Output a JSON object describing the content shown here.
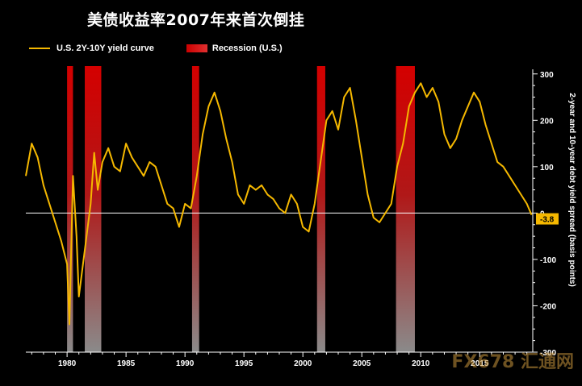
{
  "chart_data": {
    "type": "line",
    "title": "美债收益率2007年来首次倒挂",
    "ylabel": "2-year and 10-year debt yield spread (basis points)",
    "xlim": [
      1976.5,
      2019.5
    ],
    "ylim": [
      -300,
      310
    ],
    "x_ticks": [
      1980,
      1985,
      1990,
      1995,
      2000,
      2005,
      2010,
      2015
    ],
    "y_ticks": [
      -300,
      -200,
      -100,
      0,
      100,
      200,
      300
    ],
    "legend": [
      "U.S. 2Y-10Y yield curve",
      "Recession (U.S.)"
    ],
    "legend_position": "top-left",
    "annotation": "-3.8",
    "recessions": [
      [
        1980.0,
        1980.5
      ],
      [
        1981.5,
        1982.9
      ],
      [
        1990.6,
        1991.2
      ],
      [
        2001.2,
        2001.9
      ],
      [
        2007.9,
        2009.5
      ]
    ],
    "series": [
      {
        "name": "U.S. 2Y-10Y yield curve",
        "color": "#f5b800",
        "x": [
          1976.5,
          1977.0,
          1977.5,
          1978.0,
          1978.5,
          1979.0,
          1979.5,
          1980.0,
          1980.2,
          1980.5,
          1980.8,
          1981.0,
          1981.3,
          1981.6,
          1982.0,
          1982.3,
          1982.6,
          1983.0,
          1983.5,
          1984.0,
          1984.5,
          1985.0,
          1985.5,
          1986.0,
          1986.5,
          1987.0,
          1987.5,
          1988.0,
          1988.5,
          1989.0,
          1989.5,
          1990.0,
          1990.5,
          1991.0,
          1991.5,
          1992.0,
          1992.5,
          1993.0,
          1993.5,
          1994.0,
          1994.5,
          1995.0,
          1995.5,
          1996.0,
          1996.5,
          1997.0,
          1997.5,
          1998.0,
          1998.5,
          1999.0,
          1999.5,
          2000.0,
          2000.5,
          2001.0,
          2001.5,
          2002.0,
          2002.5,
          2003.0,
          2003.5,
          2004.0,
          2004.5,
          2005.0,
          2005.5,
          2006.0,
          2006.5,
          2007.0,
          2007.5,
          2008.0,
          2008.5,
          2009.0,
          2009.5,
          2010.0,
          2010.5,
          2011.0,
          2011.5,
          2012.0,
          2012.5,
          2013.0,
          2013.5,
          2014.0,
          2014.5,
          2015.0,
          2015.5,
          2016.0,
          2016.5,
          2017.0,
          2017.5,
          2018.0,
          2018.5,
          2019.0,
          2019.4
        ],
        "values": [
          80,
          150,
          120,
          60,
          20,
          -20,
          -60,
          -110,
          -240,
          80,
          -50,
          -180,
          -120,
          -60,
          20,
          130,
          50,
          110,
          140,
          100,
          90,
          150,
          120,
          100,
          80,
          110,
          100,
          60,
          20,
          10,
          -30,
          20,
          10,
          80,
          170,
          230,
          260,
          220,
          160,
          110,
          40,
          20,
          60,
          50,
          60,
          40,
          30,
          10,
          0,
          40,
          20,
          -30,
          -40,
          20,
          110,
          200,
          220,
          180,
          250,
          270,
          200,
          120,
          40,
          -10,
          -20,
          0,
          20,
          100,
          150,
          230,
          260,
          280,
          250,
          270,
          240,
          170,
          140,
          160,
          200,
          230,
          260,
          240,
          190,
          150,
          110,
          100,
          80,
          60,
          40,
          20,
          -3.8
        ]
      }
    ]
  }
}
